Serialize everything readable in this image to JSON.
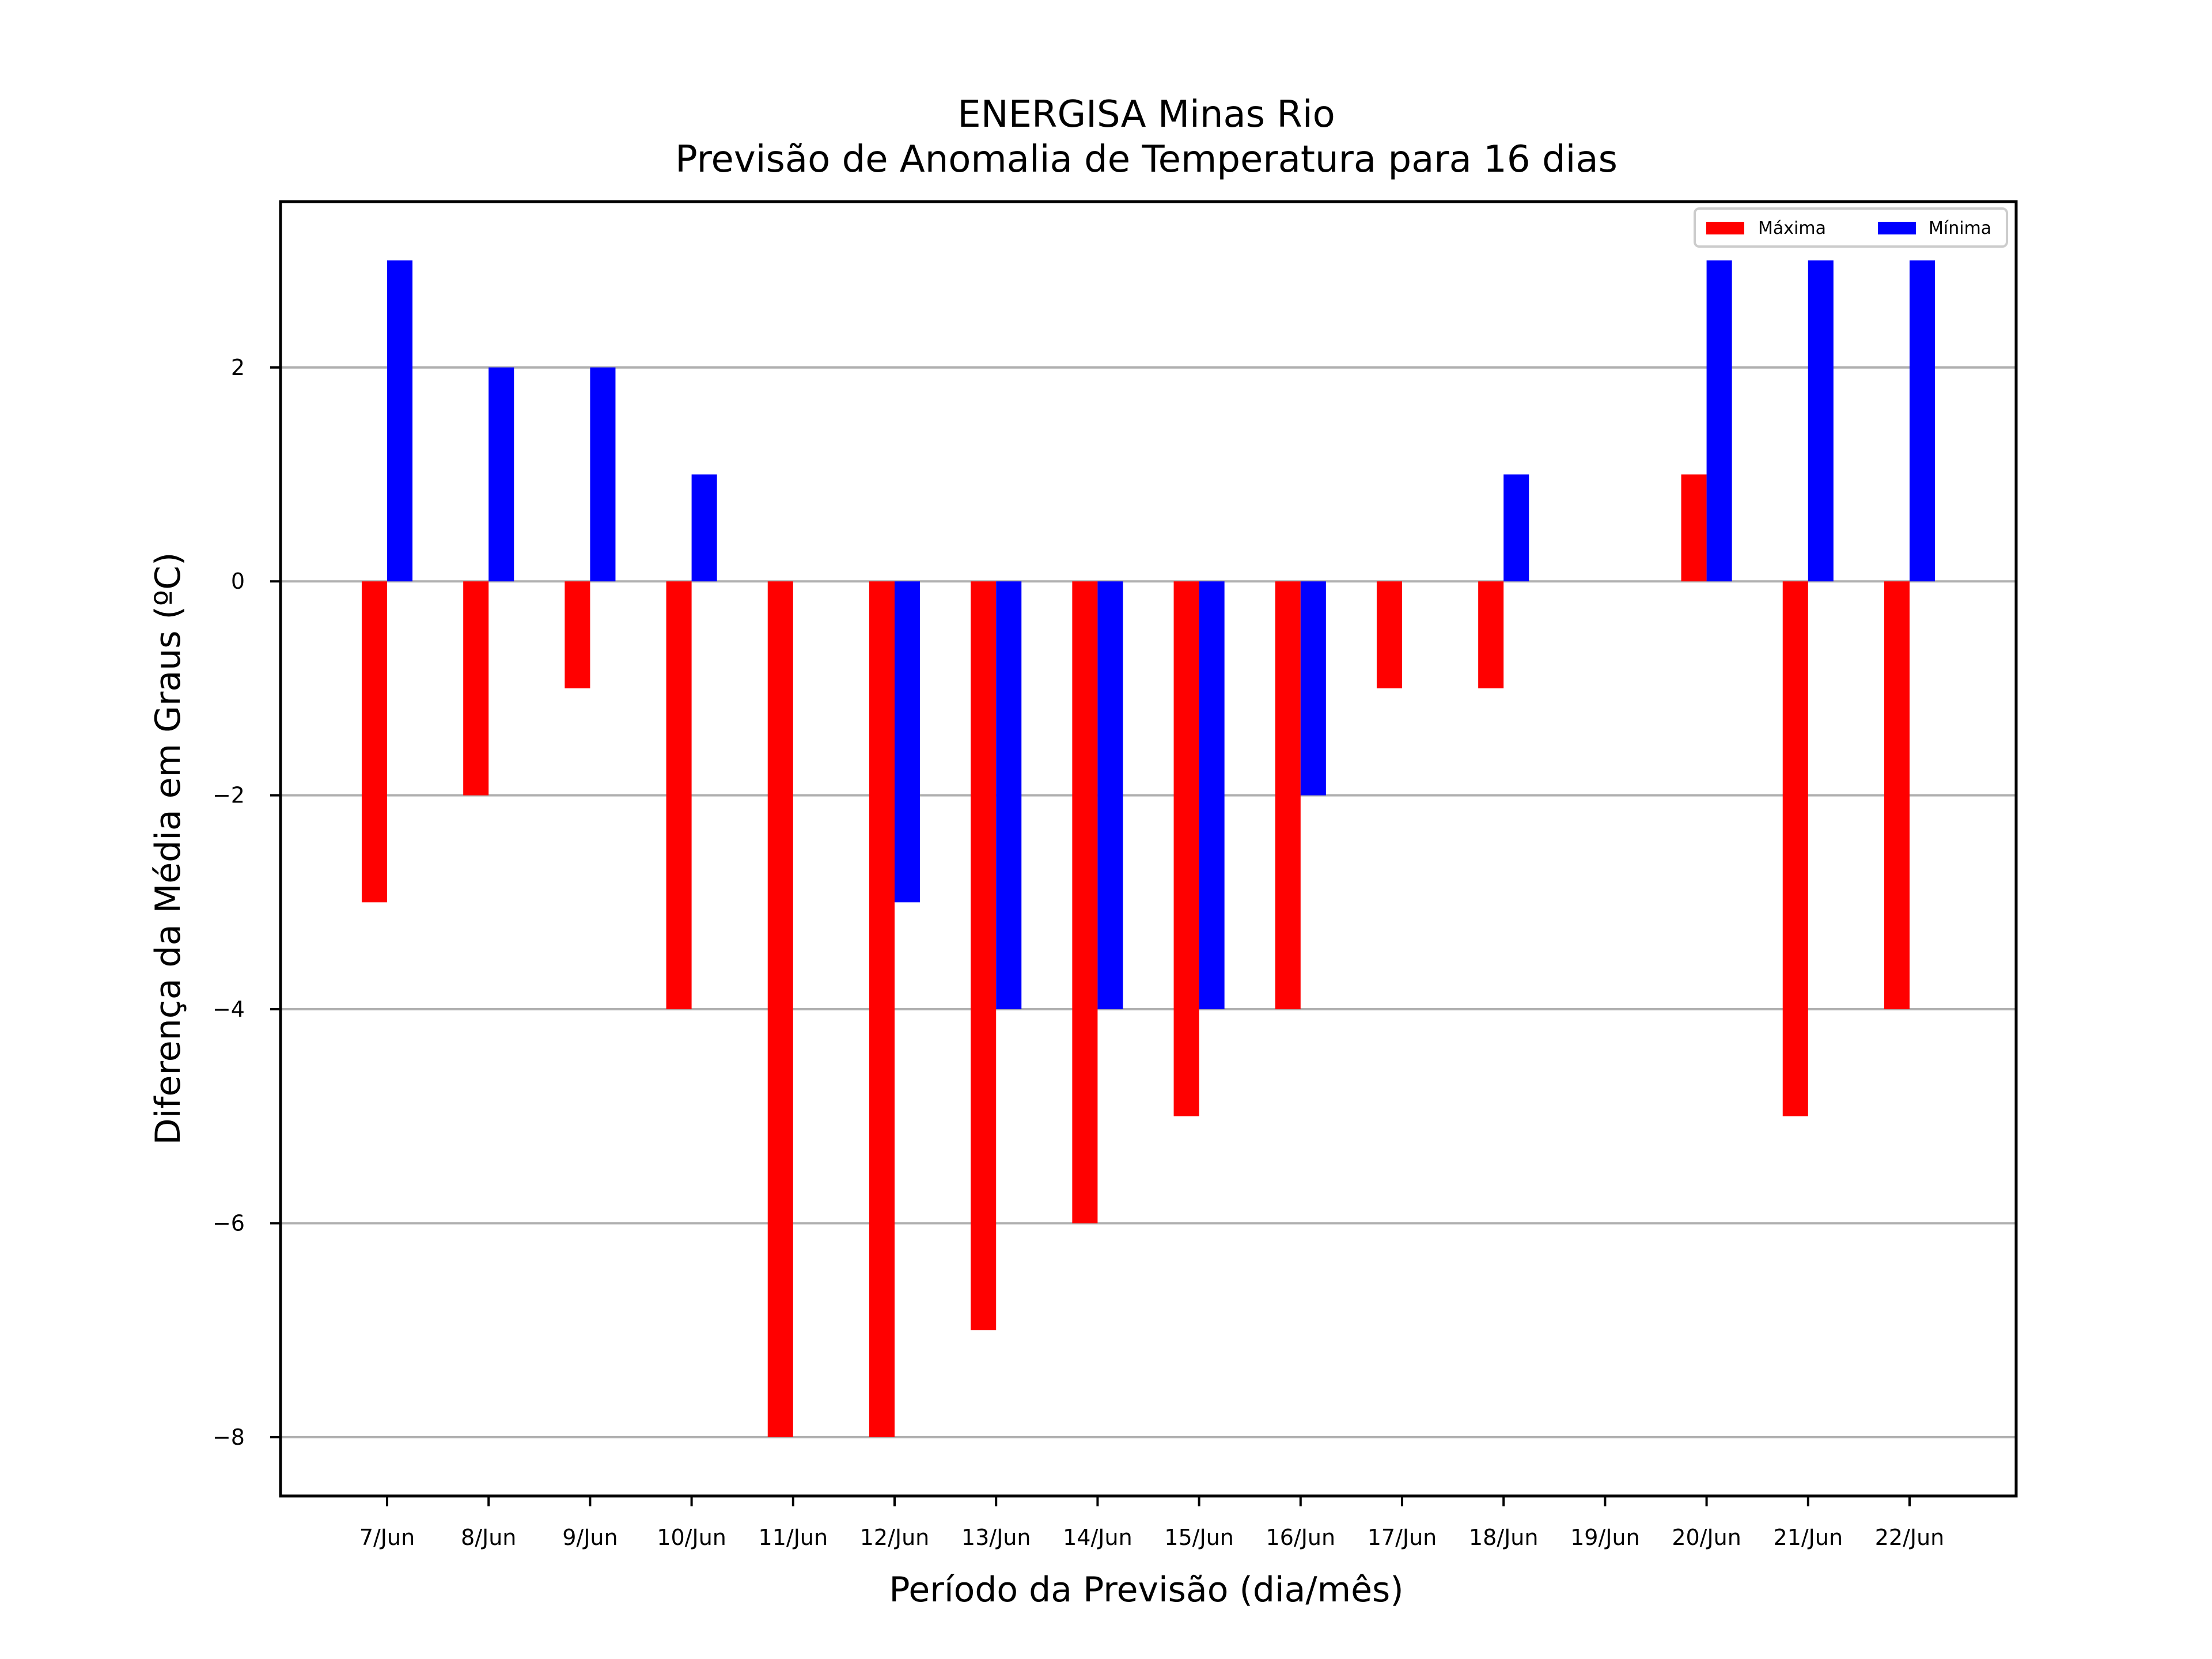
{
  "chart_data": {
    "type": "bar",
    "title": "ENERGISA Minas Rio",
    "subtitle": "Previsão de Anomalia de Temperatura para 16 dias",
    "xlabel": "Período da Previsão (dia/mês)",
    "ylabel": "Diferença da Média em Graus (ºC)",
    "categories": [
      "7/Jun",
      "8/Jun",
      "9/Jun",
      "10/Jun",
      "11/Jun",
      "12/Jun",
      "13/Jun",
      "14/Jun",
      "15/Jun",
      "16/Jun",
      "17/Jun",
      "18/Jun",
      "19/Jun",
      "20/Jun",
      "21/Jun",
      "22/Jun"
    ],
    "series": [
      {
        "name": "Máxima",
        "color": "#ff0000",
        "values": [
          -3,
          -2,
          -1,
          -4,
          -8,
          -8,
          -7,
          -6,
          -5,
          -4,
          -1,
          -1,
          0,
          1,
          -5,
          -4
        ]
      },
      {
        "name": "Mínima",
        "color": "#0000ff",
        "values": [
          3,
          2,
          2,
          1,
          0,
          -3,
          -4,
          -4,
          -4,
          -2,
          0,
          1,
          0,
          3,
          3,
          3
        ]
      }
    ],
    "ylim": [
      -8.55,
      3.55
    ],
    "yticks": [
      2,
      0,
      -2,
      -4,
      -6,
      -8
    ],
    "ytick_labels": [
      "2",
      "0",
      "−2",
      "−4",
      "−6",
      "−8"
    ],
    "grid": "horizontal",
    "grid_color": "#b0b0b0",
    "legend_position": "upper right"
  }
}
